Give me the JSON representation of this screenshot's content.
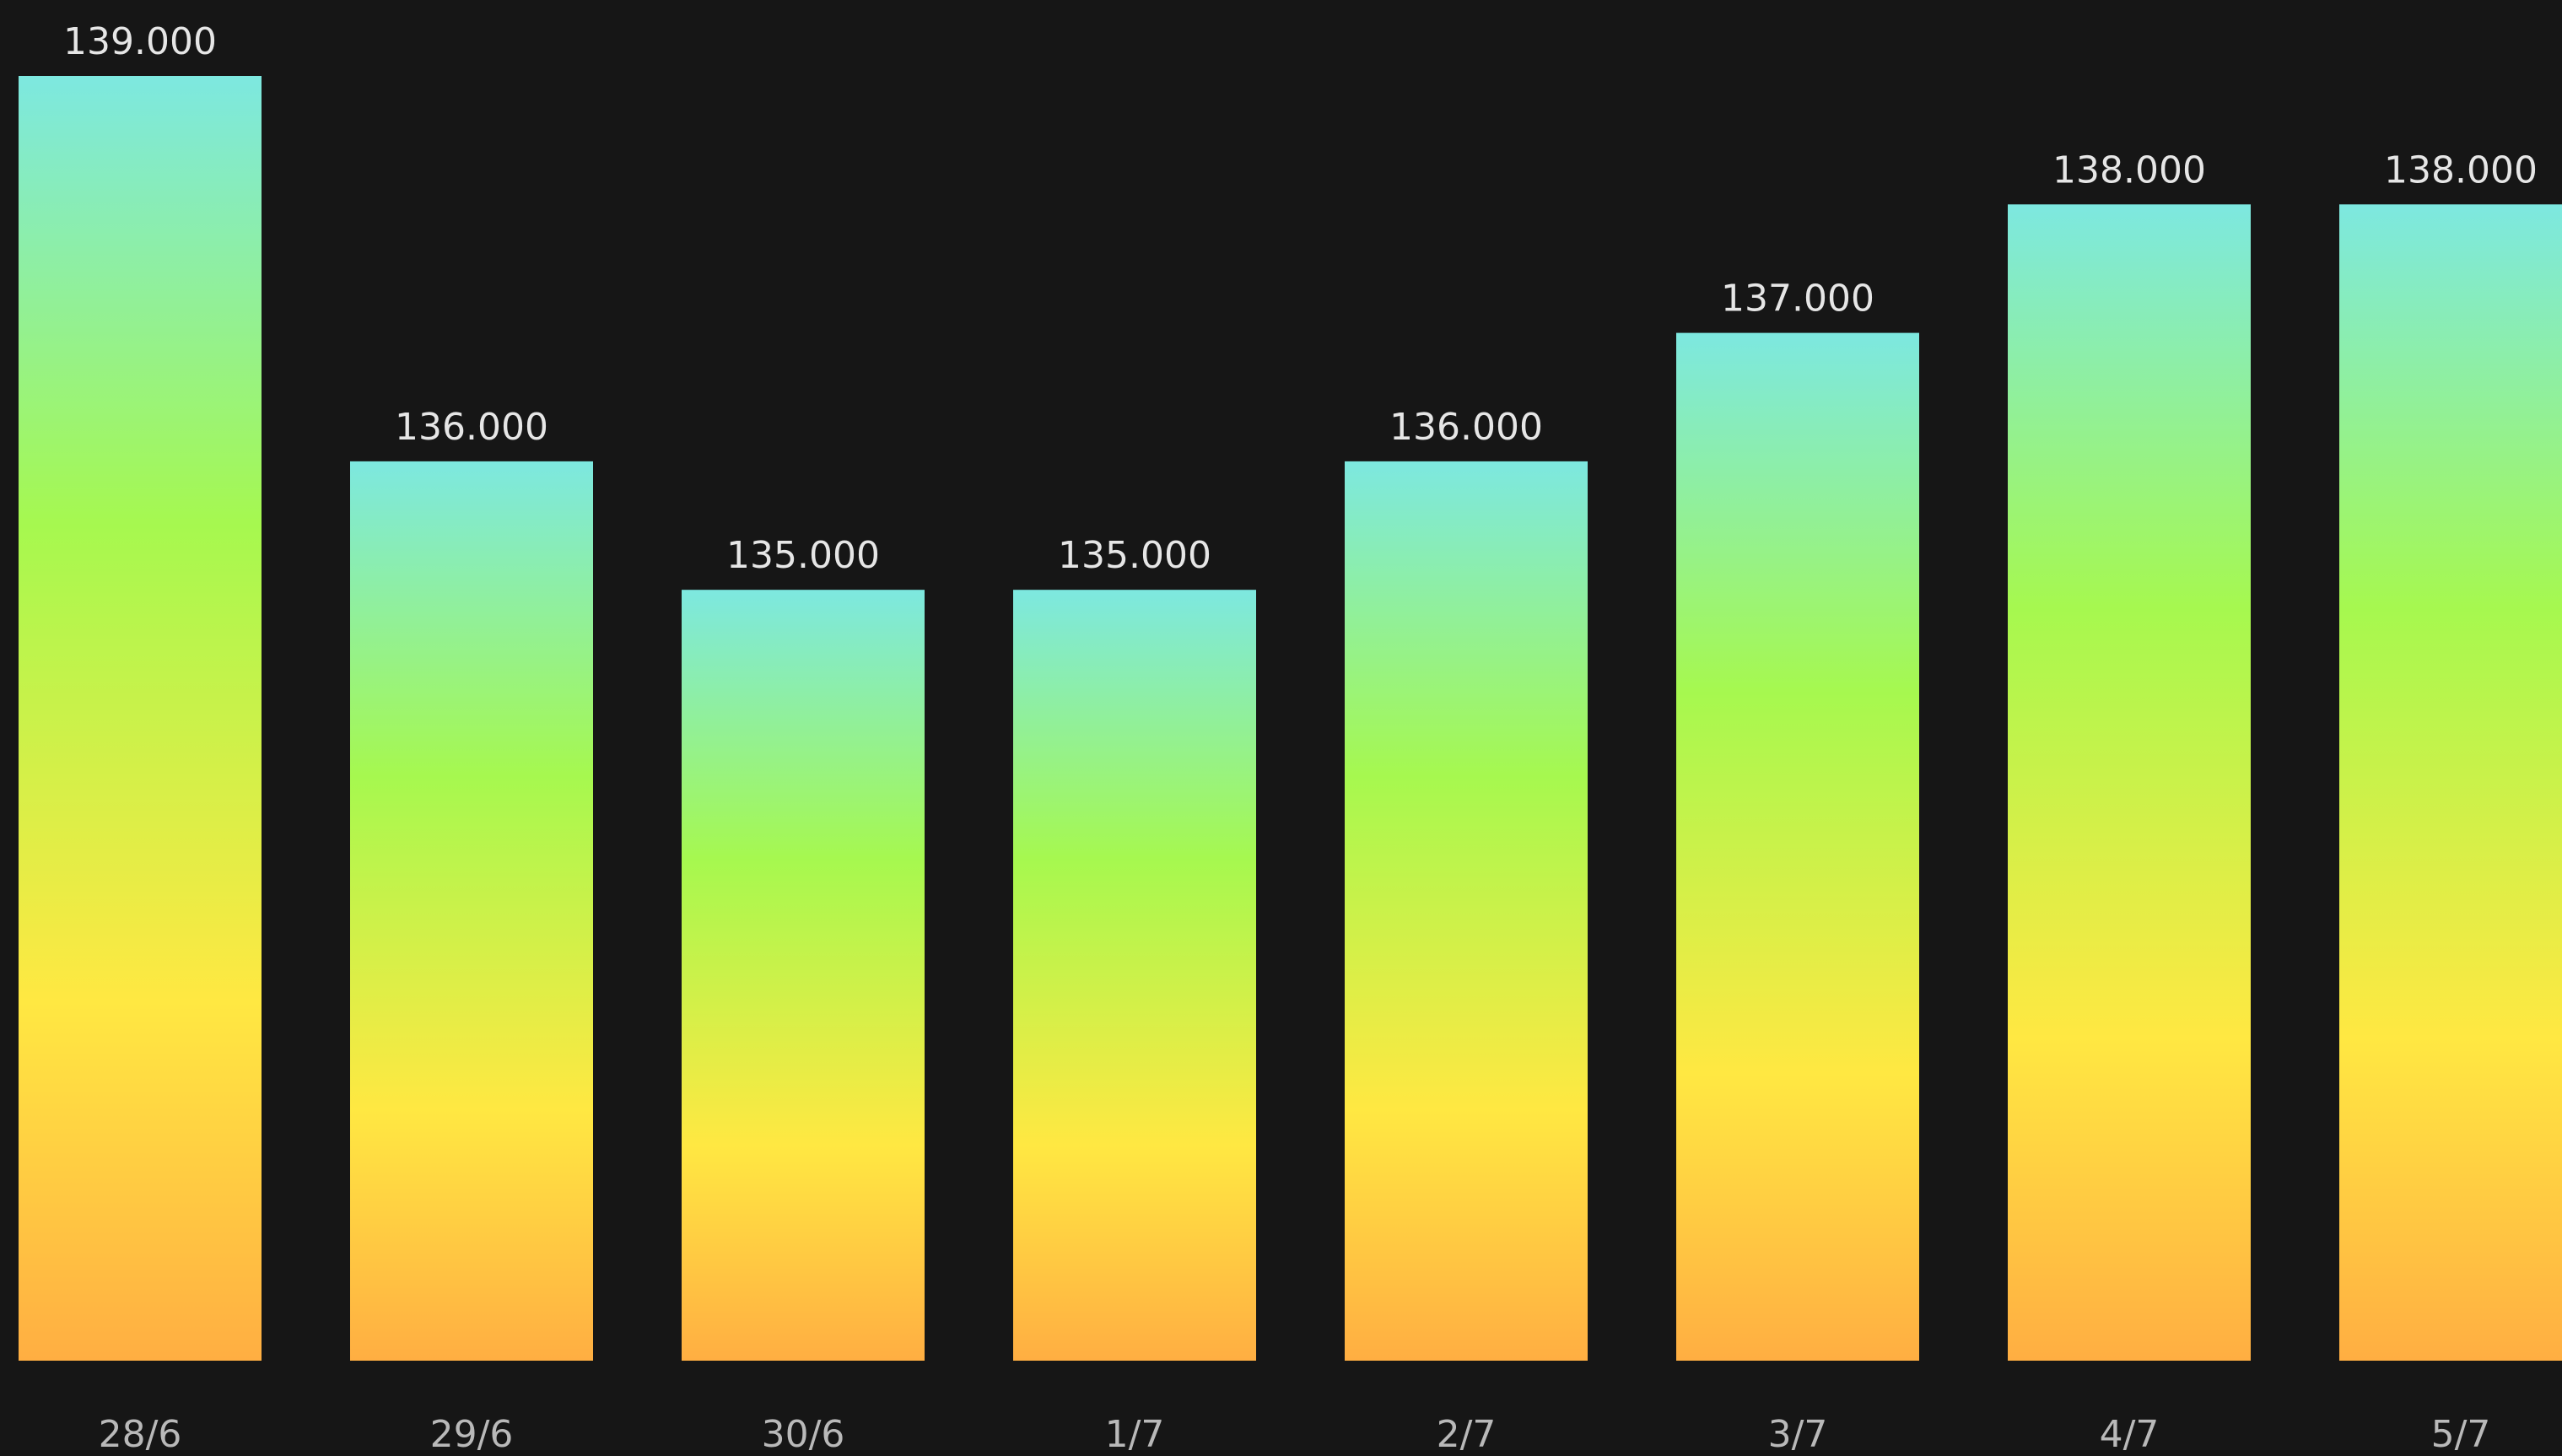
{
  "chart_data": {
    "type": "bar",
    "title": "",
    "xlabel": "",
    "ylabel": "",
    "categories": [
      "28/6",
      "29/6",
      "30/6",
      "1/7",
      "2/7",
      "3/7",
      "4/7",
      "5/7"
    ],
    "values": [
      139000,
      136000,
      135000,
      135000,
      136000,
      137000,
      138000,
      138000
    ],
    "value_labels": [
      "139.000",
      "136.000",
      "135.000",
      "135.000",
      "136.000",
      "137.000",
      "138.000",
      "138.000"
    ],
    "ylim": [
      129000,
      139000
    ],
    "grid": false,
    "legend": "none",
    "colors": {
      "background": "#161616",
      "bar_gradient_top": "#7de8e0",
      "bar_gradient_mid": "#a6f84f",
      "bar_gradient_lower": "#ffe842",
      "bar_gradient_bottom": "#ffae42",
      "value_label": "#e6e6e6",
      "tick_label": "#b9b9b9"
    }
  }
}
